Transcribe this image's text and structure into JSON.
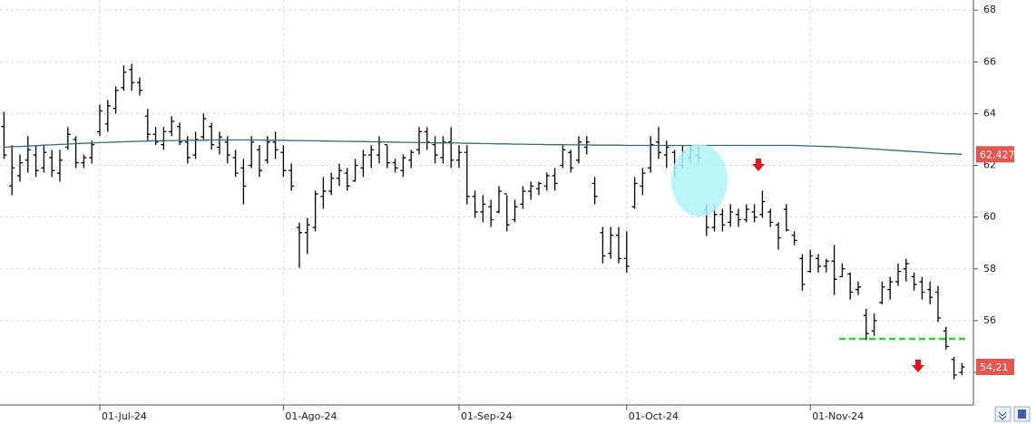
{
  "chart_data": {
    "type": "ohlc",
    "color": "#000000",
    "categories": [
      null,
      null,
      null,
      null,
      null,
      null,
      null,
      null,
      null,
      null,
      null,
      null,
      "01-Jul-24",
      null,
      null,
      null,
      null,
      null,
      null,
      null,
      null,
      null,
      null,
      null,
      null,
      null,
      null,
      null,
      null,
      null,
      null,
      null,
      null,
      null,
      null,
      "01-Ago-24",
      null,
      null,
      null,
      null,
      null,
      null,
      null,
      null,
      null,
      null,
      null,
      null,
      null,
      null,
      null,
      null,
      null,
      null,
      null,
      null,
      null,
      "01-Sep-24",
      null,
      null,
      null,
      null,
      null,
      null,
      null,
      null,
      null,
      null,
      null,
      null,
      null,
      null,
      null,
      null,
      null,
      null,
      null,
      null,
      "01-Oct-24",
      null,
      null,
      null,
      null,
      null,
      null,
      null,
      null,
      null,
      null,
      null,
      null,
      null,
      null,
      null,
      null,
      null,
      null,
      null,
      null,
      null,
      null,
      "01-Nov-24",
      null,
      null,
      null,
      null,
      null,
      null,
      null,
      null,
      null,
      null,
      null,
      null,
      null,
      null,
      null,
      null,
      null,
      null,
      null
    ],
    "open": [
      63.5,
      61.2,
      61.6,
      62.2,
      62.4,
      61.9,
      62.3,
      61.7,
      62.7,
      63.0,
      62.1,
      62.3,
      63.3,
      63.6,
      64.2,
      65.0,
      65.7,
      65.2,
      63.9,
      63.2,
      62.8,
      63.3,
      63.5,
      62.9,
      62.4,
      63.1,
      63.5,
      62.7,
      62.9,
      62.3,
      61.9,
      62.0,
      62.6,
      62.2,
      62.9,
      62.5,
      61.8,
      59.6,
      59.4,
      59.6,
      60.8,
      61.0,
      61.5,
      61.7,
      61.4,
      61.9,
      62.4,
      62.4,
      62.8,
      62.1,
      61.8,
      62.2,
      62.6,
      63.3,
      62.8,
      62.3,
      62.9,
      62.2,
      62.5,
      60.8,
      60.2,
      60.4,
      60.2,
      60.9,
      59.9,
      60.5,
      61.0,
      61.1,
      61.2,
      61.6,
      62.0,
      62.5,
      62.2,
      62.7,
      61.3,
      59.4,
      58.6,
      59.3,
      58.4,
      60.4,
      61.2,
      61.9,
      62.9,
      62.4,
      62.5,
      62.0,
      62.3,
      62.4,
      60.3,
      59.6,
      60.1,
      59.8,
      60.1,
      59.9,
      60.2,
      60.1,
      60.2,
      59.7,
      60.3,
      59.3,
      58.4,
      57.9,
      58.4,
      58.1,
      58.3,
      57.7,
      57.8,
      57.2,
      56.2,
      55.6,
      56.7,
      57.2,
      57.5,
      58.0,
      57.7,
      57.5,
      57.2,
      57.1,
      55.6,
      54.5,
      54.0
    ],
    "high": [
      64.07,
      62.78,
      62.42,
      63.13,
      62.78,
      62.78,
      62.6,
      62.6,
      63.48,
      63.13,
      62.42,
      62.95,
      64.35,
      64.53,
      65.05,
      65.86,
      65.93,
      65.4,
      64.18,
      63.48,
      63.48,
      63.9,
      63.65,
      63.13,
      63.3,
      64.0,
      63.65,
      63.3,
      63.13,
      62.6,
      62.25,
      63.13,
      62.78,
      63.13,
      63.3,
      62.78,
      62.07,
      59.79,
      59.97,
      61.02,
      61.55,
      61.72,
      62.07,
      61.9,
      62.25,
      62.6,
      62.78,
      63.13,
      62.78,
      62.25,
      62.42,
      62.6,
      63.48,
      63.48,
      63.13,
      63.13,
      63.48,
      62.78,
      62.78,
      61.02,
      60.85,
      60.67,
      61.2,
      60.85,
      60.67,
      61.2,
      61.37,
      61.37,
      61.72,
      61.9,
      62.78,
      62.6,
      63.13,
      63.13,
      61.55,
      59.62,
      59.62,
      59.62,
      59.45,
      61.55,
      61.9,
      63.13,
      63.48,
      62.95,
      62.6,
      62.78,
      62.78,
      62.78,
      60.5,
      60.5,
      60.32,
      60.5,
      60.32,
      60.5,
      60.5,
      61.02,
      60.32,
      59.8,
      60.5,
      59.45,
      58.57,
      58.74,
      58.57,
      58.39,
      58.92,
      58.21,
      57.86,
      57.51,
      56.46,
      56.28,
      57.51,
      57.69,
      58.21,
      58.39,
      57.86,
      57.69,
      57.51,
      57.34,
      55.76,
      54.6,
      54.36
    ],
    "low": [
      62.25,
      60.85,
      61.37,
      61.72,
      61.55,
      61.72,
      61.55,
      61.37,
      62.6,
      61.9,
      61.9,
      62.07,
      63.13,
      63.3,
      64.0,
      64.88,
      64.88,
      64.7,
      62.95,
      62.78,
      62.6,
      63.13,
      62.78,
      62.07,
      62.25,
      62.95,
      62.6,
      62.42,
      62.07,
      61.55,
      60.5,
      61.9,
      61.55,
      62.07,
      62.25,
      61.55,
      61.02,
      58.04,
      58.57,
      59.45,
      60.32,
      60.85,
      61.2,
      61.02,
      61.37,
      61.55,
      61.9,
      62.07,
      61.9,
      61.72,
      61.55,
      61.9,
      62.42,
      62.6,
      62.07,
      62.07,
      61.9,
      61.9,
      60.5,
      59.97,
      59.8,
      59.62,
      60.15,
      59.45,
      59.8,
      60.32,
      60.67,
      60.85,
      61.02,
      61.02,
      61.9,
      61.72,
      62.07,
      62.42,
      60.5,
      58.21,
      58.39,
      58.21,
      57.86,
      60.32,
      60.85,
      61.72,
      62.25,
      61.9,
      61.55,
      61.9,
      62.07,
      62.07,
      59.27,
      59.45,
      59.45,
      59.62,
      59.62,
      59.8,
      59.8,
      59.97,
      59.62,
      58.74,
      59.45,
      58.92,
      57.16,
      57.86,
      57.86,
      57.86,
      56.99,
      57.69,
      56.81,
      56.99,
      55.24,
      55.41,
      56.63,
      56.81,
      57.34,
      57.51,
      57.16,
      56.81,
      56.63,
      55.94,
      54.88,
      53.73,
      53.9
    ],
    "close": [
      62.4,
      61.9,
      62.1,
      62.6,
      61.8,
      62.5,
      61.8,
      62.2,
      63.2,
      62.1,
      62.3,
      62.8,
      64.1,
      64.3,
      64.9,
      65.6,
      65.2,
      64.9,
      63.2,
      62.9,
      63.3,
      63.7,
      62.9,
      62.3,
      63.0,
      63.8,
      62.8,
      63.1,
      62.4,
      61.7,
      61.2,
      62.9,
      61.8,
      62.9,
      62.6,
      61.8,
      61.2,
      59.4,
      59.7,
      60.9,
      61.0,
      61.5,
      61.8,
      61.2,
      62.0,
      62.4,
      62.6,
      62.9,
      62.1,
      61.9,
      62.3,
      62.5,
      63.3,
      62.9,
      62.4,
      62.9,
      62.2,
      62.5,
      60.8,
      60.2,
      60.5,
      59.9,
      61.0,
      59.7,
      60.4,
      61.0,
      61.2,
      61.3,
      61.6,
      61.3,
      62.6,
      61.9,
      62.9,
      62.9,
      60.8,
      58.5,
      59.3,
      58.4,
      58.1,
      61.3,
      61.7,
      62.8,
      62.5,
      62.7,
      61.9,
      62.5,
      62.6,
      62.3,
      59.6,
      60.1,
      59.7,
      60.2,
      59.9,
      60.3,
      60.0,
      60.6,
      59.8,
      59.2,
      59.5,
      59.1,
      57.4,
      58.5,
      58.1,
      58.3,
      57.6,
      58.0,
      57.1,
      57.3,
      55.5,
      56.0,
      57.3,
      57.5,
      57.9,
      58.2,
      57.4,
      57.1,
      56.9,
      56.1,
      55.0,
      53.9,
      54.21
    ],
    "last_label": "54,21",
    "ma": {
      "color": "#2e6b84",
      "values": [
        62.7,
        62.72,
        62.73,
        62.75,
        62.76,
        62.78,
        62.79,
        62.81,
        62.82,
        62.84,
        62.85,
        62.86,
        62.88,
        62.89,
        62.9,
        62.91,
        62.92,
        62.93,
        62.94,
        62.95,
        62.95,
        62.96,
        62.96,
        62.97,
        62.97,
        62.97,
        62.98,
        62.98,
        62.98,
        62.98,
        62.98,
        62.98,
        62.98,
        62.97,
        62.97,
        62.97,
        62.96,
        62.96,
        62.95,
        62.95,
        62.94,
        62.94,
        62.93,
        62.93,
        62.92,
        62.92,
        62.91,
        62.91,
        62.9,
        62.9,
        62.89,
        62.89,
        62.88,
        62.88,
        62.87,
        62.87,
        62.86,
        62.86,
        62.85,
        62.85,
        62.84,
        62.84,
        62.83,
        62.83,
        62.82,
        62.82,
        62.81,
        62.81,
        62.8,
        62.8,
        62.8,
        62.79,
        62.79,
        62.79,
        62.78,
        62.78,
        62.78,
        62.78,
        62.77,
        62.77,
        62.77,
        62.77,
        62.77,
        62.77,
        62.77,
        62.77,
        62.77,
        62.77,
        62.77,
        62.77,
        62.77,
        62.77,
        62.77,
        62.77,
        62.77,
        62.77,
        62.77,
        62.77,
        62.77,
        62.77,
        62.76,
        62.75,
        62.74,
        62.73,
        62.72,
        62.7,
        62.69,
        62.67,
        62.65,
        62.63,
        62.61,
        62.59,
        62.57,
        62.55,
        62.53,
        62.51,
        62.49,
        62.47,
        62.45,
        62.44,
        62.427
      ],
      "last_label": "62,427"
    },
    "label_color": "#e4574f",
    "ylim": [
      52.74,
      68.39
    ],
    "yticks": [
      54,
      56,
      58,
      60,
      62,
      64,
      66,
      68
    ],
    "grid": true
  }
}
